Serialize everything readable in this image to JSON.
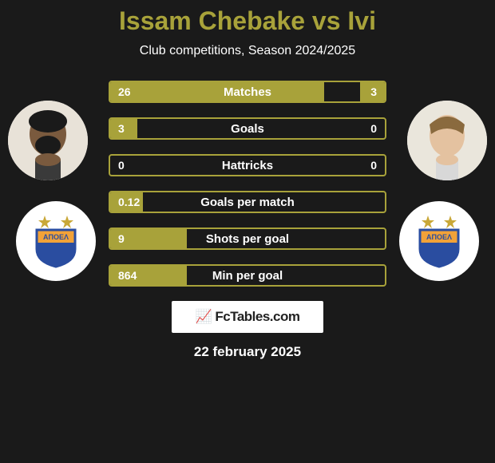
{
  "header": {
    "title": "Issam Chebake vs Ivi",
    "subtitle": "Club competitions, Season 2024/2025",
    "title_color": "#a8a23a",
    "subtitle_color": "#ffffff"
  },
  "players": {
    "left": {
      "name": "Issam Chebake"
    },
    "right": {
      "name": "Ivi"
    }
  },
  "clubs": {
    "left": {
      "name": "APOEL",
      "badge_primary": "#f2a238",
      "badge_secondary": "#2a4da0"
    },
    "right": {
      "name": "APOEL",
      "badge_primary": "#f2a238",
      "badge_secondary": "#2a4da0"
    }
  },
  "stats": {
    "type": "comparison-bar",
    "bar_border_color": "#a8a23a",
    "bar_fill_color": "#a8a23a",
    "background_color": "#1a1a1a",
    "text_color": "#ffffff",
    "rows": [
      {
        "label": "Matches",
        "left_value": "26",
        "right_value": "3",
        "left_pct": 78,
        "right_pct": 9
      },
      {
        "label": "Goals",
        "left_value": "3",
        "right_value": "0",
        "left_pct": 10,
        "right_pct": 0
      },
      {
        "label": "Hattricks",
        "left_value": "0",
        "right_value": "0",
        "left_pct": 0,
        "right_pct": 0
      },
      {
        "label": "Goals per match",
        "left_value": "0.12",
        "right_value": "",
        "left_pct": 12,
        "right_pct": 0
      },
      {
        "label": "Shots per goal",
        "left_value": "9",
        "right_value": "",
        "left_pct": 28,
        "right_pct": 0
      },
      {
        "label": "Min per goal",
        "left_value": "864",
        "right_value": "",
        "left_pct": 28,
        "right_pct": 0
      }
    ]
  },
  "branding": {
    "text": "FcTables.com"
  },
  "date": {
    "text": "22 february 2025"
  }
}
